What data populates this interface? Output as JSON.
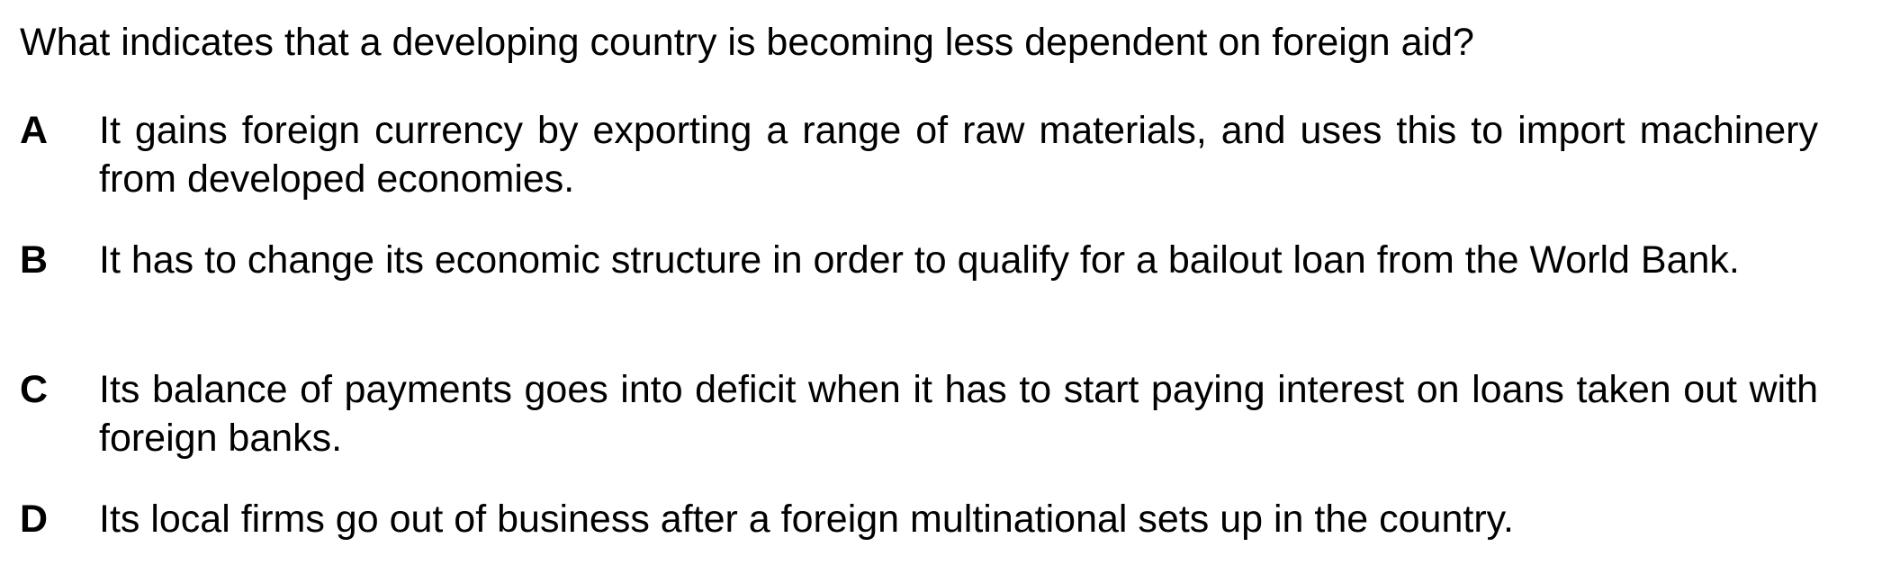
{
  "question": {
    "text": "What indicates that a developing country is becoming less dependent on foreign aid?"
  },
  "options": [
    {
      "letter": "A",
      "text": "It gains foreign currency by exporting a range of raw materials, and uses this to import machinery from developed economies."
    },
    {
      "letter": "B",
      "text": "It has to change its economic structure in order to qualify for a bailout loan from the World Bank."
    },
    {
      "letter": "C",
      "text": "Its balance of payments goes into deficit when it has to start paying interest on loans taken out with foreign banks."
    },
    {
      "letter": "D",
      "text": "Its local firms go out of business after a foreign multinational sets up in the country."
    }
  ]
}
